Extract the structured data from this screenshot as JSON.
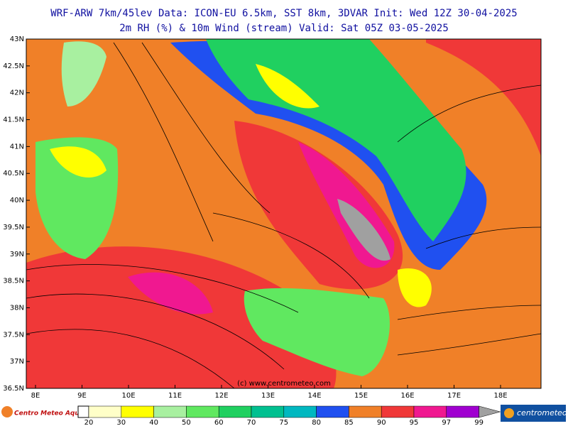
{
  "header": {
    "line1": "WRF-ARW 7km/45lev   Data: ICON-EU 6.5km, SST 8km, 3DVAR   Init: Wed 12Z 30-04-2025",
    "line2": "2m RH (%) & 10m Wind (stream)  Valid: Sat 05Z 03-05-2025"
  },
  "map": {
    "lat_labels": [
      "43N",
      "42.5N",
      "42N",
      "41.5N",
      "41N",
      "40.5N",
      "40N",
      "39.5N",
      "39N",
      "38.5N",
      "38N",
      "37.5N",
      "37N",
      "36.5N"
    ],
    "lon_labels": [
      "8E",
      "9E",
      "10E",
      "11E",
      "12E",
      "13E",
      "14E",
      "15E",
      "16E",
      "17E",
      "18E"
    ],
    "watermark": "(c) www.centrometeo.com"
  },
  "legend": {
    "labels": [
      "20",
      "30",
      "40",
      "50",
      "60",
      "70",
      "75",
      "80",
      "85",
      "90",
      "95",
      "97",
      "99"
    ],
    "colors": [
      "#ffffc8",
      "#ffff00",
      "#a8f0a0",
      "#60e860",
      "#20d060",
      "#00c090",
      "#00b8c0",
      "#2050f0",
      "#f08028",
      "#f03838",
      "#f01890",
      "#a000d0",
      "#a0a0a0"
    ]
  },
  "logos": {
    "left": "Centro Meteo Aquileo",
    "right": "centrometeo"
  }
}
